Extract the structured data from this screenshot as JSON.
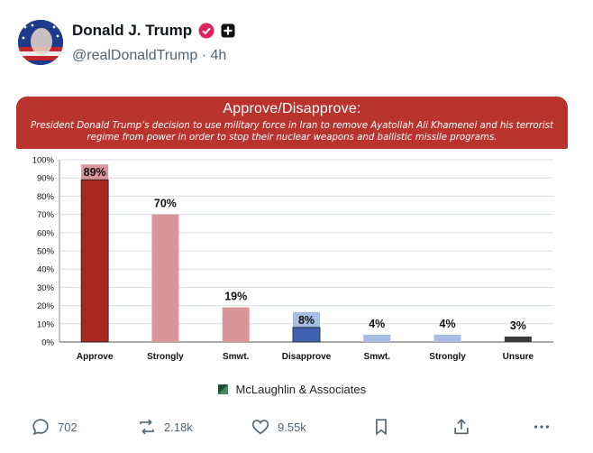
{
  "post": {
    "display_name": "Donald J. Trump",
    "handle": "@realDonaldTrump",
    "separator": "·",
    "time": "4h"
  },
  "banner": {
    "title": "Approve/Disapprove:",
    "subtitle": "President Donald Trump’s decision to use military force in Iran to remove Ayatollah Ali Khamenei and his terrorist regime from power in order to stop their nuclear weapons and ballistic missile programs."
  },
  "chart_data": {
    "type": "bar",
    "categories": [
      "Approve",
      "Strongly",
      "Smwt.",
      "Disapprove",
      "Smwt.",
      "Strongly",
      "Unsure"
    ],
    "values": [
      89,
      70,
      19,
      8,
      4,
      4,
      3
    ],
    "value_labels": [
      "89%",
      "70%",
      "19%",
      "8%",
      "4%",
      "4%",
      "3%"
    ],
    "bar_colors": [
      "#a8281f",
      "#d9969a",
      "#d9969a",
      "#3f63b2",
      "#a7bde3",
      "#a7bde3",
      "#3a3a3a"
    ],
    "total_bar_index": [
      0,
      3
    ],
    "ylim": [
      0,
      100
    ],
    "yticks": [
      "0%",
      "10%",
      "20%",
      "30%",
      "40%",
      "50%",
      "60%",
      "70%",
      "80%",
      "90%",
      "100%"
    ],
    "grid": true,
    "title": "Approve/Disapprove:",
    "xlabel": "",
    "ylabel": ""
  },
  "credit": {
    "text": "McLaughlin & Associates"
  },
  "actions": {
    "replies": "702",
    "reposts": "2.18k",
    "likes": "9.55k"
  },
  "colors": {
    "banner": "#b8342c",
    "verified": "#e0245e",
    "muted": "#536471"
  }
}
